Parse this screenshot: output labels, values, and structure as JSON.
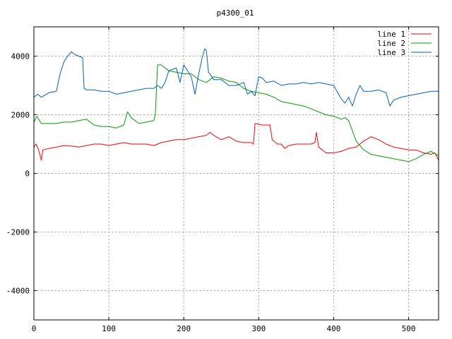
{
  "chart_data": {
    "type": "line",
    "title": "p4300_01",
    "xlabel": "",
    "ylabel": "",
    "xlim": [
      0,
      540
    ],
    "ylim": [
      -5000,
      5000
    ],
    "x_ticks": [
      0,
      100,
      200,
      300,
      400,
      500
    ],
    "y_ticks": [
      -4000,
      -2000,
      0,
      2000,
      4000
    ],
    "grid": true,
    "legend_position": "top-right",
    "series": [
      {
        "name": "line 1",
        "color": "#ff0000",
        "points": [
          [
            0,
            900
          ],
          [
            3,
            1000
          ],
          [
            6,
            820
          ],
          [
            10,
            450
          ],
          [
            12,
            800
          ],
          [
            20,
            850
          ],
          [
            30,
            900
          ],
          [
            40,
            950
          ],
          [
            50,
            930
          ],
          [
            60,
            900
          ],
          [
            70,
            950
          ],
          [
            80,
            1000
          ],
          [
            90,
            1000
          ],
          [
            100,
            950
          ],
          [
            110,
            1000
          ],
          [
            120,
            1050
          ],
          [
            130,
            1000
          ],
          [
            140,
            1000
          ],
          [
            150,
            1000
          ],
          [
            160,
            950
          ],
          [
            170,
            1050
          ],
          [
            180,
            1100
          ],
          [
            190,
            1150
          ],
          [
            200,
            1150
          ],
          [
            210,
            1200
          ],
          [
            220,
            1250
          ],
          [
            230,
            1300
          ],
          [
            235,
            1400
          ],
          [
            240,
            1300
          ],
          [
            250,
            1150
          ],
          [
            260,
            1250
          ],
          [
            270,
            1100
          ],
          [
            280,
            1050
          ],
          [
            290,
            1050
          ],
          [
            293,
            1000
          ],
          [
            295,
            1700
          ],
          [
            305,
            1650
          ],
          [
            315,
            1650
          ],
          [
            318,
            1150
          ],
          [
            325,
            1000
          ],
          [
            330,
            1000
          ],
          [
            335,
            850
          ],
          [
            340,
            950
          ],
          [
            350,
            1000
          ],
          [
            360,
            1000
          ],
          [
            370,
            1000
          ],
          [
            375,
            1050
          ],
          [
            377,
            1400
          ],
          [
            380,
            900
          ],
          [
            390,
            700
          ],
          [
            400,
            700
          ],
          [
            410,
            750
          ],
          [
            420,
            850
          ],
          [
            430,
            900
          ],
          [
            440,
            1100
          ],
          [
            450,
            1250
          ],
          [
            460,
            1150
          ],
          [
            470,
            1000
          ],
          [
            480,
            900
          ],
          [
            490,
            850
          ],
          [
            500,
            800
          ],
          [
            505,
            800
          ],
          [
            510,
            800
          ],
          [
            520,
            700
          ],
          [
            530,
            650
          ],
          [
            535,
            700
          ],
          [
            540,
            450
          ]
        ]
      },
      {
        "name": "line 2",
        "color": "#00a000",
        "points": [
          [
            0,
            1750
          ],
          [
            4,
            1950
          ],
          [
            10,
            1700
          ],
          [
            20,
            1700
          ],
          [
            30,
            1700
          ],
          [
            40,
            1750
          ],
          [
            50,
            1750
          ],
          [
            60,
            1800
          ],
          [
            70,
            1850
          ],
          [
            80,
            1650
          ],
          [
            90,
            1600
          ],
          [
            100,
            1600
          ],
          [
            110,
            1550
          ],
          [
            120,
            1650
          ],
          [
            125,
            2100
          ],
          [
            130,
            1900
          ],
          [
            140,
            1700
          ],
          [
            150,
            1750
          ],
          [
            160,
            1800
          ],
          [
            162,
            2000
          ],
          [
            165,
            3700
          ],
          [
            170,
            3700
          ],
          [
            180,
            3500
          ],
          [
            190,
            3450
          ],
          [
            200,
            3400
          ],
          [
            210,
            3400
          ],
          [
            220,
            3200
          ],
          [
            230,
            3100
          ],
          [
            240,
            3300
          ],
          [
            250,
            3250
          ],
          [
            260,
            3150
          ],
          [
            270,
            3100
          ],
          [
            280,
            2900
          ],
          [
            290,
            2800
          ],
          [
            300,
            2750
          ],
          [
            310,
            2700
          ],
          [
            320,
            2600
          ],
          [
            330,
            2450
          ],
          [
            340,
            2400
          ],
          [
            350,
            2350
          ],
          [
            360,
            2300
          ],
          [
            370,
            2200
          ],
          [
            380,
            2100
          ],
          [
            390,
            2000
          ],
          [
            400,
            1950
          ],
          [
            410,
            1850
          ],
          [
            415,
            1900
          ],
          [
            420,
            1800
          ],
          [
            425,
            1450
          ],
          [
            430,
            1100
          ],
          [
            440,
            800
          ],
          [
            450,
            650
          ],
          [
            460,
            600
          ],
          [
            470,
            550
          ],
          [
            480,
            500
          ],
          [
            490,
            450
          ],
          [
            500,
            400
          ],
          [
            510,
            500
          ],
          [
            520,
            650
          ],
          [
            530,
            750
          ],
          [
            540,
            600
          ]
        ]
      },
      {
        "name": "line 3",
        "color": "#0060c0",
        "points": [
          [
            0,
            2600
          ],
          [
            5,
            2700
          ],
          [
            10,
            2600
          ],
          [
            20,
            2750
          ],
          [
            30,
            2800
          ],
          [
            35,
            3400
          ],
          [
            40,
            3800
          ],
          [
            45,
            4000
          ],
          [
            50,
            4150
          ],
          [
            55,
            4050
          ],
          [
            60,
            4000
          ],
          [
            65,
            3950
          ],
          [
            67,
            2900
          ],
          [
            70,
            2850
          ],
          [
            80,
            2850
          ],
          [
            90,
            2800
          ],
          [
            100,
            2800
          ],
          [
            110,
            2700
          ],
          [
            120,
            2750
          ],
          [
            130,
            2800
          ],
          [
            140,
            2850
          ],
          [
            150,
            2900
          ],
          [
            160,
            2900
          ],
          [
            165,
            3000
          ],
          [
            170,
            2900
          ],
          [
            175,
            3100
          ],
          [
            180,
            3500
          ],
          [
            190,
            3600
          ],
          [
            195,
            3100
          ],
          [
            200,
            3700
          ],
          [
            210,
            3300
          ],
          [
            215,
            2700
          ],
          [
            220,
            3400
          ],
          [
            225,
            4000
          ],
          [
            228,
            4250
          ],
          [
            230,
            4200
          ],
          [
            233,
            3450
          ],
          [
            240,
            3200
          ],
          [
            250,
            3200
          ],
          [
            260,
            3000
          ],
          [
            270,
            3000
          ],
          [
            280,
            3100
          ],
          [
            285,
            2700
          ],
          [
            290,
            2800
          ],
          [
            295,
            2650
          ],
          [
            300,
            3300
          ],
          [
            305,
            3250
          ],
          [
            310,
            3100
          ],
          [
            320,
            3150
          ],
          [
            330,
            3000
          ],
          [
            340,
            3050
          ],
          [
            350,
            3050
          ],
          [
            360,
            3100
          ],
          [
            370,
            3050
          ],
          [
            380,
            3100
          ],
          [
            390,
            3050
          ],
          [
            400,
            3000
          ],
          [
            410,
            2550
          ],
          [
            415,
            2400
          ],
          [
            420,
            2600
          ],
          [
            425,
            2300
          ],
          [
            430,
            2700
          ],
          [
            435,
            3000
          ],
          [
            440,
            2800
          ],
          [
            450,
            2800
          ],
          [
            460,
            2850
          ],
          [
            470,
            2750
          ],
          [
            475,
            2300
          ],
          [
            480,
            2500
          ],
          [
            490,
            2600
          ],
          [
            500,
            2650
          ],
          [
            510,
            2700
          ],
          [
            520,
            2750
          ],
          [
            530,
            2800
          ],
          [
            540,
            2800
          ]
        ]
      }
    ]
  }
}
